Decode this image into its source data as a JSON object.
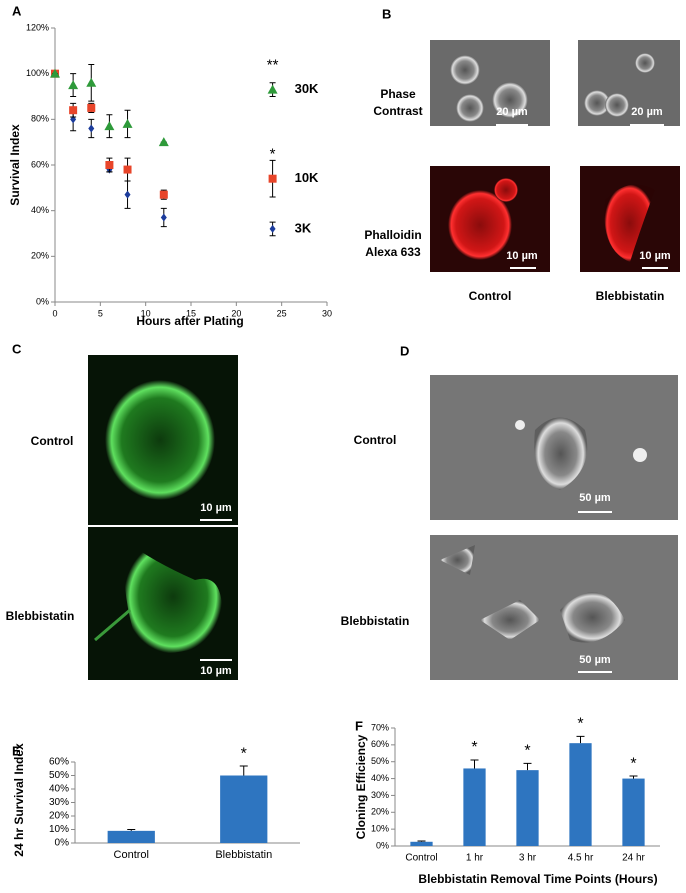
{
  "panel_labels": [
    "A",
    "B",
    "C",
    "D",
    "E",
    "F"
  ],
  "panel_b": {
    "row_labels": [
      [
        "Phase",
        "Contrast"
      ],
      [
        "Phalloidin",
        "Alexa 633"
      ]
    ],
    "scale_bars": [
      "20 µm",
      "20 µm",
      "10 µm",
      "10 µm"
    ],
    "column_labels": [
      "Control",
      "Blebbistatin"
    ]
  },
  "panel_c": {
    "row_labels": [
      "Control",
      "Blebbistatin"
    ],
    "scale_bars": [
      "10 µm",
      "10 µm"
    ]
  },
  "panel_d": {
    "row_labels": [
      "Control",
      "Blebbistatin"
    ],
    "scale_bars": [
      "50 µm",
      "50 µm"
    ]
  },
  "chart_data": [
    {
      "type": "scatter",
      "x_label": "Hours after Plating",
      "y_label": "Survival Index",
      "xlim": [
        0,
        30
      ],
      "xticks": [
        0,
        5,
        10,
        15,
        20,
        25,
        30
      ],
      "ylim": [
        0,
        120
      ],
      "yticks": [
        {
          "value": 0,
          "label": "0%"
        },
        {
          "value": 20,
          "label": "20%"
        },
        {
          "value": 40,
          "label": "40%"
        },
        {
          "value": 60,
          "label": "60%"
        },
        {
          "value": 80,
          "label": "80%"
        },
        {
          "value": 100,
          "label": "100%"
        },
        {
          "value": 120,
          "label": "120%"
        }
      ],
      "series": [
        {
          "name": "3K",
          "color": "#1c3c9c",
          "marker": "diamond",
          "x": [
            0,
            2,
            4,
            6,
            8,
            12,
            24
          ],
          "values": [
            100,
            80,
            76,
            58,
            47,
            37,
            32
          ],
          "errors": [
            0,
            5,
            4,
            1,
            6,
            4,
            3
          ]
        },
        {
          "name": "10K",
          "color": "#e8452a",
          "marker": "square",
          "x": [
            0,
            2,
            4,
            6,
            8,
            12,
            24
          ],
          "values": [
            100,
            84,
            85,
            60,
            58,
            47,
            54
          ],
          "errors": [
            0,
            3,
            2,
            3,
            5,
            2,
            8
          ],
          "annotation": "*"
        },
        {
          "name": "30K",
          "color": "#2e9a3a",
          "marker": "triangle",
          "x": [
            0,
            2,
            4,
            6,
            8,
            12,
            24
          ],
          "values": [
            100,
            95,
            96,
            77,
            78,
            70,
            93
          ],
          "errors": [
            0,
            5,
            8,
            5,
            6,
            0,
            3
          ],
          "annotation": "**"
        }
      ]
    },
    {
      "type": "bar",
      "y_label": "24 hr Survival Index",
      "color": "#2e75c0",
      "categories": [
        "Control",
        "Blebbistatin"
      ],
      "values": [
        9,
        50
      ],
      "errors": [
        1,
        7
      ],
      "value_annotations": [
        null,
        "*"
      ],
      "ylim": [
        0,
        60
      ],
      "yticks": [
        {
          "value": 0,
          "label": "0%"
        },
        {
          "value": 10,
          "label": "10%"
        },
        {
          "value": 20,
          "label": "20%"
        },
        {
          "value": 30,
          "label": "30%"
        },
        {
          "value": 40,
          "label": "40%"
        },
        {
          "value": 50,
          "label": "50%"
        },
        {
          "value": 60,
          "label": "60%"
        }
      ]
    },
    {
      "type": "bar",
      "x_label": "Blebbistatin Removal Time Points (Hours)",
      "y_label": "Cloning Efficiency",
      "color": "#2e75c0",
      "categories": [
        "Control",
        "1 hr",
        "3 hr",
        "4.5 hr",
        "24 hr"
      ],
      "values": [
        2.5,
        46,
        45,
        61,
        40
      ],
      "errors": [
        0.5,
        5,
        4,
        4,
        1.5
      ],
      "value_annotations": [
        null,
        "*",
        "*",
        "*",
        "*"
      ],
      "ylim": [
        0,
        70
      ],
      "yticks": [
        {
          "value": 0,
          "label": "0%"
        },
        {
          "value": 10,
          "label": "10%"
        },
        {
          "value": 20,
          "label": "20%"
        },
        {
          "value": 30,
          "label": "30%"
        },
        {
          "value": 40,
          "label": "40%"
        },
        {
          "value": 50,
          "label": "50%"
        },
        {
          "value": 60,
          "label": "60%"
        },
        {
          "value": 70,
          "label": "70%"
        }
      ]
    }
  ]
}
